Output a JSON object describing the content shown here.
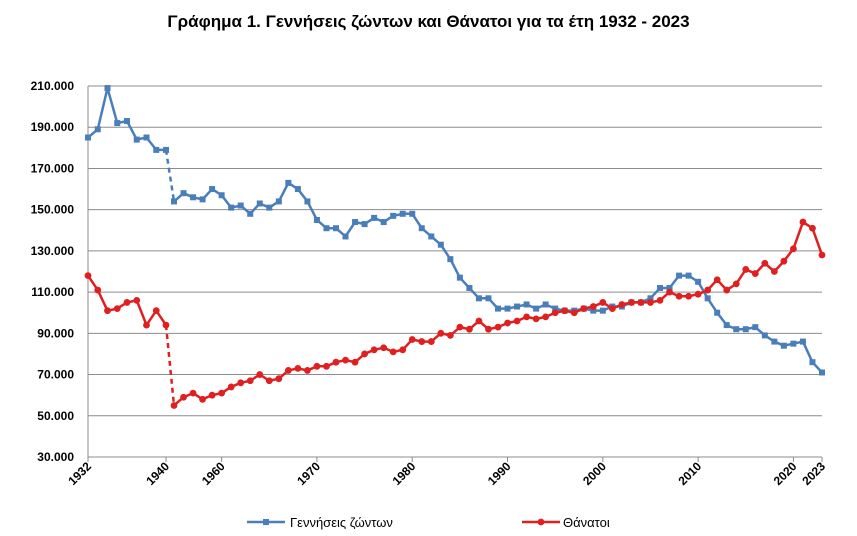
{
  "chart_data": {
    "type": "line",
    "title": "Γράφημα 1.  Γεννήσεις ζώντων και Θάνατοι για τα έτη 1932 - 2023",
    "xlabel": "",
    "ylabel": "",
    "ylim": [
      30000,
      210000
    ],
    "y_ticks": [
      "210.000",
      "190.000",
      "170.000",
      "150.000",
      "130.000",
      "110.000",
      "90.000",
      "70.000",
      "50.000",
      "30.000"
    ],
    "y_tick_values": [
      210000,
      190000,
      170000,
      150000,
      130000,
      110000,
      90000,
      70000,
      50000,
      30000
    ],
    "x_ticks": [
      "1932",
      "1940",
      "1960",
      "1970",
      "1980",
      "1990",
      "2000",
      "2010",
      "2020",
      "2023"
    ],
    "grid": true,
    "legend_position": "bottom",
    "gap_note_dashed": "dashed segment between 1940 and 1955",
    "series": [
      {
        "name": "Γεννήσεις ζώντων",
        "color": "#4a7ebb",
        "marker": "square",
        "segments": [
          {
            "years": [
              1932,
              1933,
              1934,
              1935,
              1936,
              1937,
              1938,
              1939,
              1940
            ],
            "values": [
              185000,
              189000,
              209000,
              192000,
              193000,
              184000,
              185000,
              179000,
              179000
            ]
          },
          {
            "years": [
              1955,
              1956,
              1957,
              1958,
              1959,
              1960,
              1961,
              1962,
              1963,
              1964,
              1965,
              1966,
              1967,
              1968,
              1969,
              1970,
              1971,
              1972,
              1973,
              1974,
              1975,
              1976,
              1977,
              1978,
              1979,
              1980,
              1981,
              1982,
              1983,
              1984,
              1985,
              1986,
              1987,
              1988,
              1989,
              1990,
              1991,
              1992,
              1993,
              1994,
              1995,
              1996,
              1997,
              1998,
              1999,
              2000,
              2001,
              2002,
              2003,
              2004,
              2005,
              2006,
              2007,
              2008,
              2009,
              2010,
              2011,
              2012,
              2013,
              2014,
              2015,
              2016,
              2017,
              2018,
              2019,
              2020,
              2021,
              2022,
              2023
            ],
            "values": [
              154000,
              158000,
              156000,
              155000,
              160000,
              157000,
              151000,
              152000,
              148000,
              153000,
              151000,
              154000,
              163000,
              160000,
              154000,
              145000,
              141000,
              141000,
              137000,
              144000,
              143000,
              146000,
              144000,
              147000,
              148000,
              148000,
              141000,
              137000,
              133000,
              126000,
              117000,
              112000,
              107000,
              107000,
              102000,
              102000,
              103000,
              104000,
              102000,
              104000,
              102000,
              101000,
              101000,
              102000,
              101000,
              101000,
              103000,
              103000,
              105000,
              105000,
              107000,
              112000,
              112000,
              118000,
              118000,
              115000,
              107000,
              100000,
              94000,
              92000,
              92000,
              93000,
              89000,
              86000,
              84000,
              85000,
              86000,
              76000,
              71000
            ]
          }
        ]
      },
      {
        "name": "Θάνατοι",
        "color": "#e02020",
        "marker": "circle",
        "segments": [
          {
            "years": [
              1932,
              1933,
              1934,
              1935,
              1936,
              1937,
              1938,
              1939,
              1940
            ],
            "values": [
              118000,
              111000,
              101000,
              102000,
              105000,
              106000,
              94000,
              101000,
              94000
            ]
          },
          {
            "years": [
              1955,
              1956,
              1957,
              1958,
              1959,
              1960,
              1961,
              1962,
              1963,
              1964,
              1965,
              1966,
              1967,
              1968,
              1969,
              1970,
              1971,
              1972,
              1973,
              1974,
              1975,
              1976,
              1977,
              1978,
              1979,
              1980,
              1981,
              1982,
              1983,
              1984,
              1985,
              1986,
              1987,
              1988,
              1989,
              1990,
              1991,
              1992,
              1993,
              1994,
              1995,
              1996,
              1997,
              1998,
              1999,
              2000,
              2001,
              2002,
              2003,
              2004,
              2005,
              2006,
              2007,
              2008,
              2009,
              2010,
              2011,
              2012,
              2013,
              2014,
              2015,
              2016,
              2017,
              2018,
              2019,
              2020,
              2021,
              2022,
              2023
            ],
            "values": [
              55000,
              59000,
              61000,
              58000,
              60000,
              61000,
              64000,
              66000,
              67000,
              70000,
              67000,
              68000,
              72000,
              73000,
              72000,
              74000,
              74000,
              76000,
              77000,
              76000,
              80000,
              82000,
              83000,
              81000,
              82000,
              87000,
              86000,
              86000,
              90000,
              89000,
              93000,
              92000,
              96000,
              92000,
              93000,
              95000,
              96000,
              98000,
              97000,
              98000,
              100000,
              101000,
              100000,
              102000,
              103000,
              105000,
              102000,
              104000,
              105000,
              105000,
              105000,
              106000,
              110000,
              108000,
              108000,
              109000,
              111000,
              116000,
              111000,
              114000,
              121000,
              119000,
              124000,
              120000,
              125000,
              131000,
              144000,
              141000,
              128000
            ]
          }
        ]
      }
    ]
  }
}
